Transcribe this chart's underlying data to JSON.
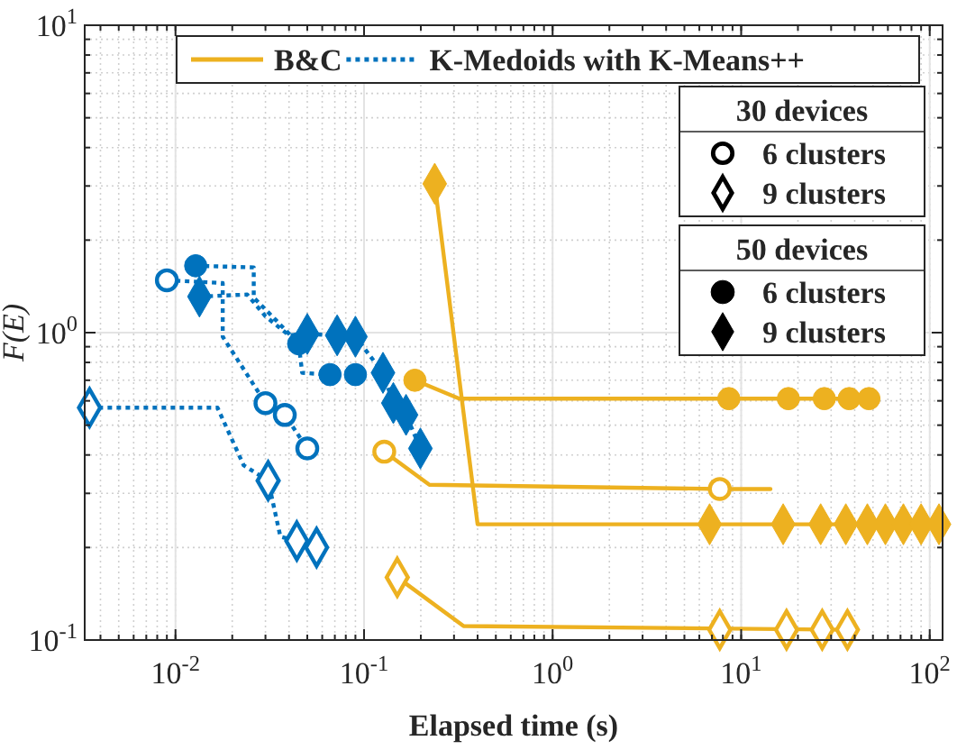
{
  "chart_data": {
    "type": "line",
    "xlabel": "Elapsed time (s)",
    "ylabel": "F(E)",
    "log": "xy",
    "grid": true,
    "legend": "top right",
    "xlim": [
      0.0033,
      117
    ],
    "ylim": [
      0.1,
      10
    ],
    "xticks": [
      {
        "value": 0.01,
        "label": "10$^{-2}$"
      },
      {
        "value": 0.1,
        "label": "10$^{-1}$"
      },
      {
        "value": 1,
        "label": "10$^{0}$"
      },
      {
        "value": 10,
        "label": "10$^{1}$"
      },
      {
        "value": 100,
        "label": "10$^{2}$"
      }
    ],
    "yticks": [
      {
        "value": 0.1,
        "label": "10$^{-1}$"
      },
      {
        "value": 1,
        "label": "10$^{0}$"
      },
      {
        "value": 10,
        "label": "10$^{1}$"
      }
    ],
    "annotations": [
      "30 devices",
      "6 clusters",
      "9 clusters",
      "50 devices",
      "6 clusters",
      "9 clusters"
    ],
    "series": [
      {
        "name": "B&C",
        "color": "#edb120",
        "line_style": "solid",
        "marker": "none",
        "x": [
          0.186,
          0.32,
          47.6
        ],
        "values": [
          0.7,
          0.61,
          0.61
        ]
      },
      {
        "name": "K-Medoids with K-Means++",
        "color": "#0072bd",
        "line_style": "dotted",
        "marker": "none",
        "x": [
          0.009,
          0.0178,
          0.0178,
          0.03,
          0.038,
          0.05
        ],
        "values": [
          1.48,
          1.45,
          0.97,
          0.59,
          0.54,
          0.42
        ]
      },
      {
        "type": "line",
        "color": "#0072bd",
        "line_style": "dotted",
        "marker": "none",
        "x": [
          0.0035,
          0.0167,
          0.023,
          0.031,
          0.036,
          0.044,
          0.056
        ],
        "values": [
          0.57,
          0.57,
          0.37,
          0.33,
          0.217,
          0.21,
          0.2
        ]
      },
      {
        "type": "line",
        "color": "#0072bd",
        "line_style": "dotted",
        "marker": "none",
        "x": [
          0.0128,
          0.026,
          0.026,
          0.034,
          0.045,
          0.047,
          0.066,
          0.09
        ],
        "values": [
          1.65,
          1.63,
          1.3,
          1.1,
          0.92,
          0.74,
          0.73,
          0.73
        ]
      },
      {
        "type": "line",
        "color": "#0072bd",
        "line_style": "dotted",
        "marker": "none",
        "x": [
          0.0134,
          0.024,
          0.03,
          0.04,
          0.05,
          0.072,
          0.09,
          0.126,
          0.143,
          0.167,
          0.199
        ],
        "values": [
          1.31,
          1.33,
          1.13,
          0.98,
          0.99,
          0.98,
          0.97,
          0.74,
          0.59,
          0.54,
          0.42
        ]
      },
      {
        "type": "line",
        "color": "#edb120",
        "line_style": "solid",
        "marker": "none",
        "x": [
          0.128,
          0.222,
          7.7,
          14.3
        ],
        "values": [
          0.41,
          0.32,
          0.31,
          0.31
        ]
      },
      {
        "type": "line",
        "color": "#edb120",
        "line_style": "solid",
        "marker": "none",
        "x": [
          0.237,
          0.4,
          112
        ],
        "values": [
          3.05,
          0.238,
          0.238
        ]
      },
      {
        "type": "line",
        "color": "#edb120",
        "line_style": "solid",
        "marker": "none",
        "x": [
          0.15,
          0.337,
          36.6
        ],
        "values": [
          0.16,
          0.111,
          0.108
        ]
      },
      {
        "type": "scatter",
        "color": "#0072bd",
        "marker": "circle",
        "x": [
          0.009,
          0.03,
          0.038,
          0.05
        ],
        "values": [
          1.48,
          0.59,
          0.54,
          0.42
        ]
      },
      {
        "type": "scatter",
        "color": "#0072bd",
        "marker": "diamond",
        "x": [
          0.0035,
          0.031,
          0.044,
          0.056
        ],
        "values": [
          0.57,
          0.33,
          0.21,
          0.2
        ]
      },
      {
        "type": "scatter",
        "color": "#0072bd",
        "marker": "circle",
        "x": [
          0.0128,
          0.045,
          0.066,
          0.09
        ],
        "values": [
          1.65,
          0.92,
          0.73,
          0.73
        ]
      },
      {
        "type": "scatter",
        "color": "#0072bd",
        "marker": "diamond",
        "x": [
          0.0134,
          0.05,
          0.072,
          0.09,
          0.126,
          0.143,
          0.167,
          0.199
        ],
        "values": [
          1.31,
          0.99,
          0.98,
          0.97,
          0.74,
          0.59,
          0.54,
          0.42
        ]
      },
      {
        "type": "scatter",
        "color": "#edb120",
        "marker": "circle",
        "x": [
          0.128,
          7.7
        ],
        "values": [
          0.41,
          0.31
        ]
      },
      {
        "type": "scatter",
        "color": "#edb120",
        "marker": "diamond",
        "x": [
          0.15,
          7.7,
          17.4,
          26.9,
          36.6
        ],
        "values": [
          0.16,
          0.108,
          0.108,
          0.108,
          0.108
        ]
      },
      {
        "type": "scatter",
        "color": "#edb120",
        "marker": "circle",
        "x": [
          0.186,
          8.6,
          17.8,
          27.6,
          37.4,
          47.6
        ],
        "values": [
          0.7,
          0.61,
          0.61,
          0.61,
          0.61,
          0.61
        ]
      },
      {
        "type": "scatter",
        "color": "#edb120",
        "marker": "diamond",
        "x": [
          0.237,
          6.8,
          16.7,
          26.4,
          35.9,
          46.7,
          58.2,
          72.5,
          90,
          112
        ],
        "values": [
          3.05,
          0.238,
          0.238,
          0.238,
          0.238,
          0.238,
          0.238,
          0.238,
          0.238,
          0.238
        ]
      }
    ]
  }
}
